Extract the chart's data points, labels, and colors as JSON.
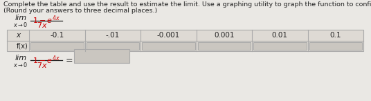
{
  "title_line1": "Complete the table and use the result to estimate the limit. Use a graphing utility to graph the function to confirm your result.",
  "title_line2": "(Round your answers to three decimal places.)",
  "x_values": [
    "-0.1",
    "-.01",
    "-0.001",
    "0.001",
    "0.01",
    "0.1"
  ],
  "row_label_x": "x",
  "row_label_fx": "f(x)",
  "background": "#eae8e4",
  "table_row1_bg": "#dedad4",
  "table_row2_bg": "#dedad4",
  "cell_empty_bg": "#cac6c0",
  "border_color": "#aaaaaa",
  "text_color": "#222222",
  "red_color": "#cc0000",
  "font_size_title": 6.8,
  "font_size_table": 7.5,
  "font_size_limit": 8.0
}
